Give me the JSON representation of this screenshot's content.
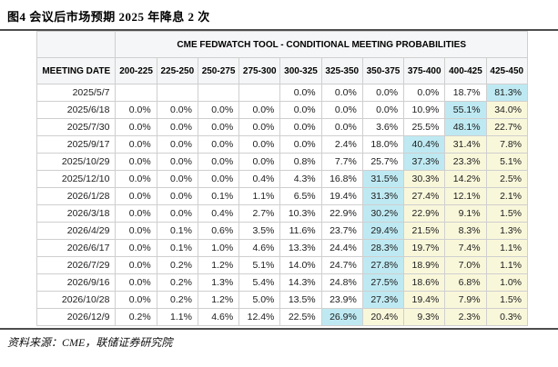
{
  "figure": {
    "title": "图4  会议后市场预期 2025 年降息 2 次"
  },
  "source": {
    "label": "资料来源：CME，联储证券研究院"
  },
  "colors": {
    "highlight_cyan": "#bee9f2",
    "highlight_yellow": "#f9f7da",
    "header_bg": "#f5f6f7",
    "border": "#cfcfcf",
    "rule": "#4d4d4d"
  },
  "table": {
    "header": "CME FEDWATCH TOOL - CONDITIONAL MEETING PROBABILITIES",
    "date_column_header": "MEETING DATE",
    "rate_columns": [
      "200-225",
      "225-250",
      "250-275",
      "275-300",
      "300-325",
      "325-350",
      "350-375",
      "375-400",
      "400-425",
      "425-450"
    ],
    "rows": [
      {
        "date": "2025/5/7",
        "values": [
          "",
          "",
          "",
          "",
          "0.0%",
          "0.0%",
          "0.0%",
          "0.0%",
          "18.7%",
          "81.3%"
        ],
        "cell_colors": [
          "",
          "",
          "",
          "",
          "",
          "",
          "",
          "",
          "",
          "cyan"
        ]
      },
      {
        "date": "2025/6/18",
        "values": [
          "0.0%",
          "0.0%",
          "0.0%",
          "0.0%",
          "0.0%",
          "0.0%",
          "0.0%",
          "10.9%",
          "55.1%",
          "34.0%"
        ],
        "cell_colors": [
          "",
          "",
          "",
          "",
          "",
          "",
          "",
          "",
          "cyan",
          "yellow"
        ]
      },
      {
        "date": "2025/7/30",
        "values": [
          "0.0%",
          "0.0%",
          "0.0%",
          "0.0%",
          "0.0%",
          "0.0%",
          "3.6%",
          "25.5%",
          "48.1%",
          "22.7%"
        ],
        "cell_colors": [
          "",
          "",
          "",
          "",
          "",
          "",
          "",
          "",
          "cyan",
          "yellow"
        ]
      },
      {
        "date": "2025/9/17",
        "values": [
          "0.0%",
          "0.0%",
          "0.0%",
          "0.0%",
          "0.0%",
          "2.4%",
          "18.0%",
          "40.4%",
          "31.4%",
          "7.8%"
        ],
        "cell_colors": [
          "",
          "",
          "",
          "",
          "",
          "",
          "",
          "cyan",
          "yellow",
          "yellow"
        ]
      },
      {
        "date": "2025/10/29",
        "values": [
          "0.0%",
          "0.0%",
          "0.0%",
          "0.0%",
          "0.8%",
          "7.7%",
          "25.7%",
          "37.3%",
          "23.3%",
          "5.1%"
        ],
        "cell_colors": [
          "",
          "",
          "",
          "",
          "",
          "",
          "",
          "cyan",
          "yellow",
          "yellow"
        ]
      },
      {
        "date": "2025/12/10",
        "values": [
          "0.0%",
          "0.0%",
          "0.0%",
          "0.4%",
          "4.3%",
          "16.8%",
          "31.5%",
          "30.3%",
          "14.2%",
          "2.5%"
        ],
        "cell_colors": [
          "",
          "",
          "",
          "",
          "",
          "",
          "cyan",
          "yellow",
          "yellow",
          "yellow"
        ]
      },
      {
        "date": "2026/1/28",
        "values": [
          "0.0%",
          "0.0%",
          "0.1%",
          "1.1%",
          "6.5%",
          "19.4%",
          "31.3%",
          "27.4%",
          "12.1%",
          "2.1%"
        ],
        "cell_colors": [
          "",
          "",
          "",
          "",
          "",
          "",
          "cyan",
          "yellow",
          "yellow",
          "yellow"
        ]
      },
      {
        "date": "2026/3/18",
        "values": [
          "0.0%",
          "0.0%",
          "0.4%",
          "2.7%",
          "10.3%",
          "22.9%",
          "30.2%",
          "22.9%",
          "9.1%",
          "1.5%"
        ],
        "cell_colors": [
          "",
          "",
          "",
          "",
          "",
          "",
          "cyan",
          "yellow",
          "yellow",
          "yellow"
        ]
      },
      {
        "date": "2026/4/29",
        "values": [
          "0.0%",
          "0.1%",
          "0.6%",
          "3.5%",
          "11.6%",
          "23.7%",
          "29.4%",
          "21.5%",
          "8.3%",
          "1.3%"
        ],
        "cell_colors": [
          "",
          "",
          "",
          "",
          "",
          "",
          "cyan",
          "yellow",
          "yellow",
          "yellow"
        ]
      },
      {
        "date": "2026/6/17",
        "values": [
          "0.0%",
          "0.1%",
          "1.0%",
          "4.6%",
          "13.3%",
          "24.4%",
          "28.3%",
          "19.7%",
          "7.4%",
          "1.1%"
        ],
        "cell_colors": [
          "",
          "",
          "",
          "",
          "",
          "",
          "cyan",
          "yellow",
          "yellow",
          "yellow"
        ]
      },
      {
        "date": "2026/7/29",
        "values": [
          "0.0%",
          "0.2%",
          "1.2%",
          "5.1%",
          "14.0%",
          "24.7%",
          "27.8%",
          "18.9%",
          "7.0%",
          "1.1%"
        ],
        "cell_colors": [
          "",
          "",
          "",
          "",
          "",
          "",
          "cyan",
          "yellow",
          "yellow",
          "yellow"
        ]
      },
      {
        "date": "2026/9/16",
        "values": [
          "0.0%",
          "0.2%",
          "1.3%",
          "5.4%",
          "14.3%",
          "24.8%",
          "27.5%",
          "18.6%",
          "6.8%",
          "1.0%"
        ],
        "cell_colors": [
          "",
          "",
          "",
          "",
          "",
          "",
          "cyan",
          "yellow",
          "yellow",
          "yellow"
        ]
      },
      {
        "date": "2026/10/28",
        "values": [
          "0.0%",
          "0.2%",
          "1.2%",
          "5.0%",
          "13.5%",
          "23.9%",
          "27.3%",
          "19.4%",
          "7.9%",
          "1.5%"
        ],
        "cell_colors": [
          "",
          "",
          "",
          "",
          "",
          "",
          "cyan",
          "yellow",
          "yellow",
          "yellow"
        ]
      },
      {
        "date": "2026/12/9",
        "values": [
          "0.2%",
          "1.1%",
          "4.6%",
          "12.4%",
          "22.5%",
          "26.9%",
          "20.4%",
          "9.3%",
          "2.3%",
          "0.3%"
        ],
        "cell_colors": [
          "",
          "",
          "",
          "",
          "",
          "cyan",
          "yellow",
          "yellow",
          "yellow",
          "yellow"
        ]
      }
    ]
  }
}
